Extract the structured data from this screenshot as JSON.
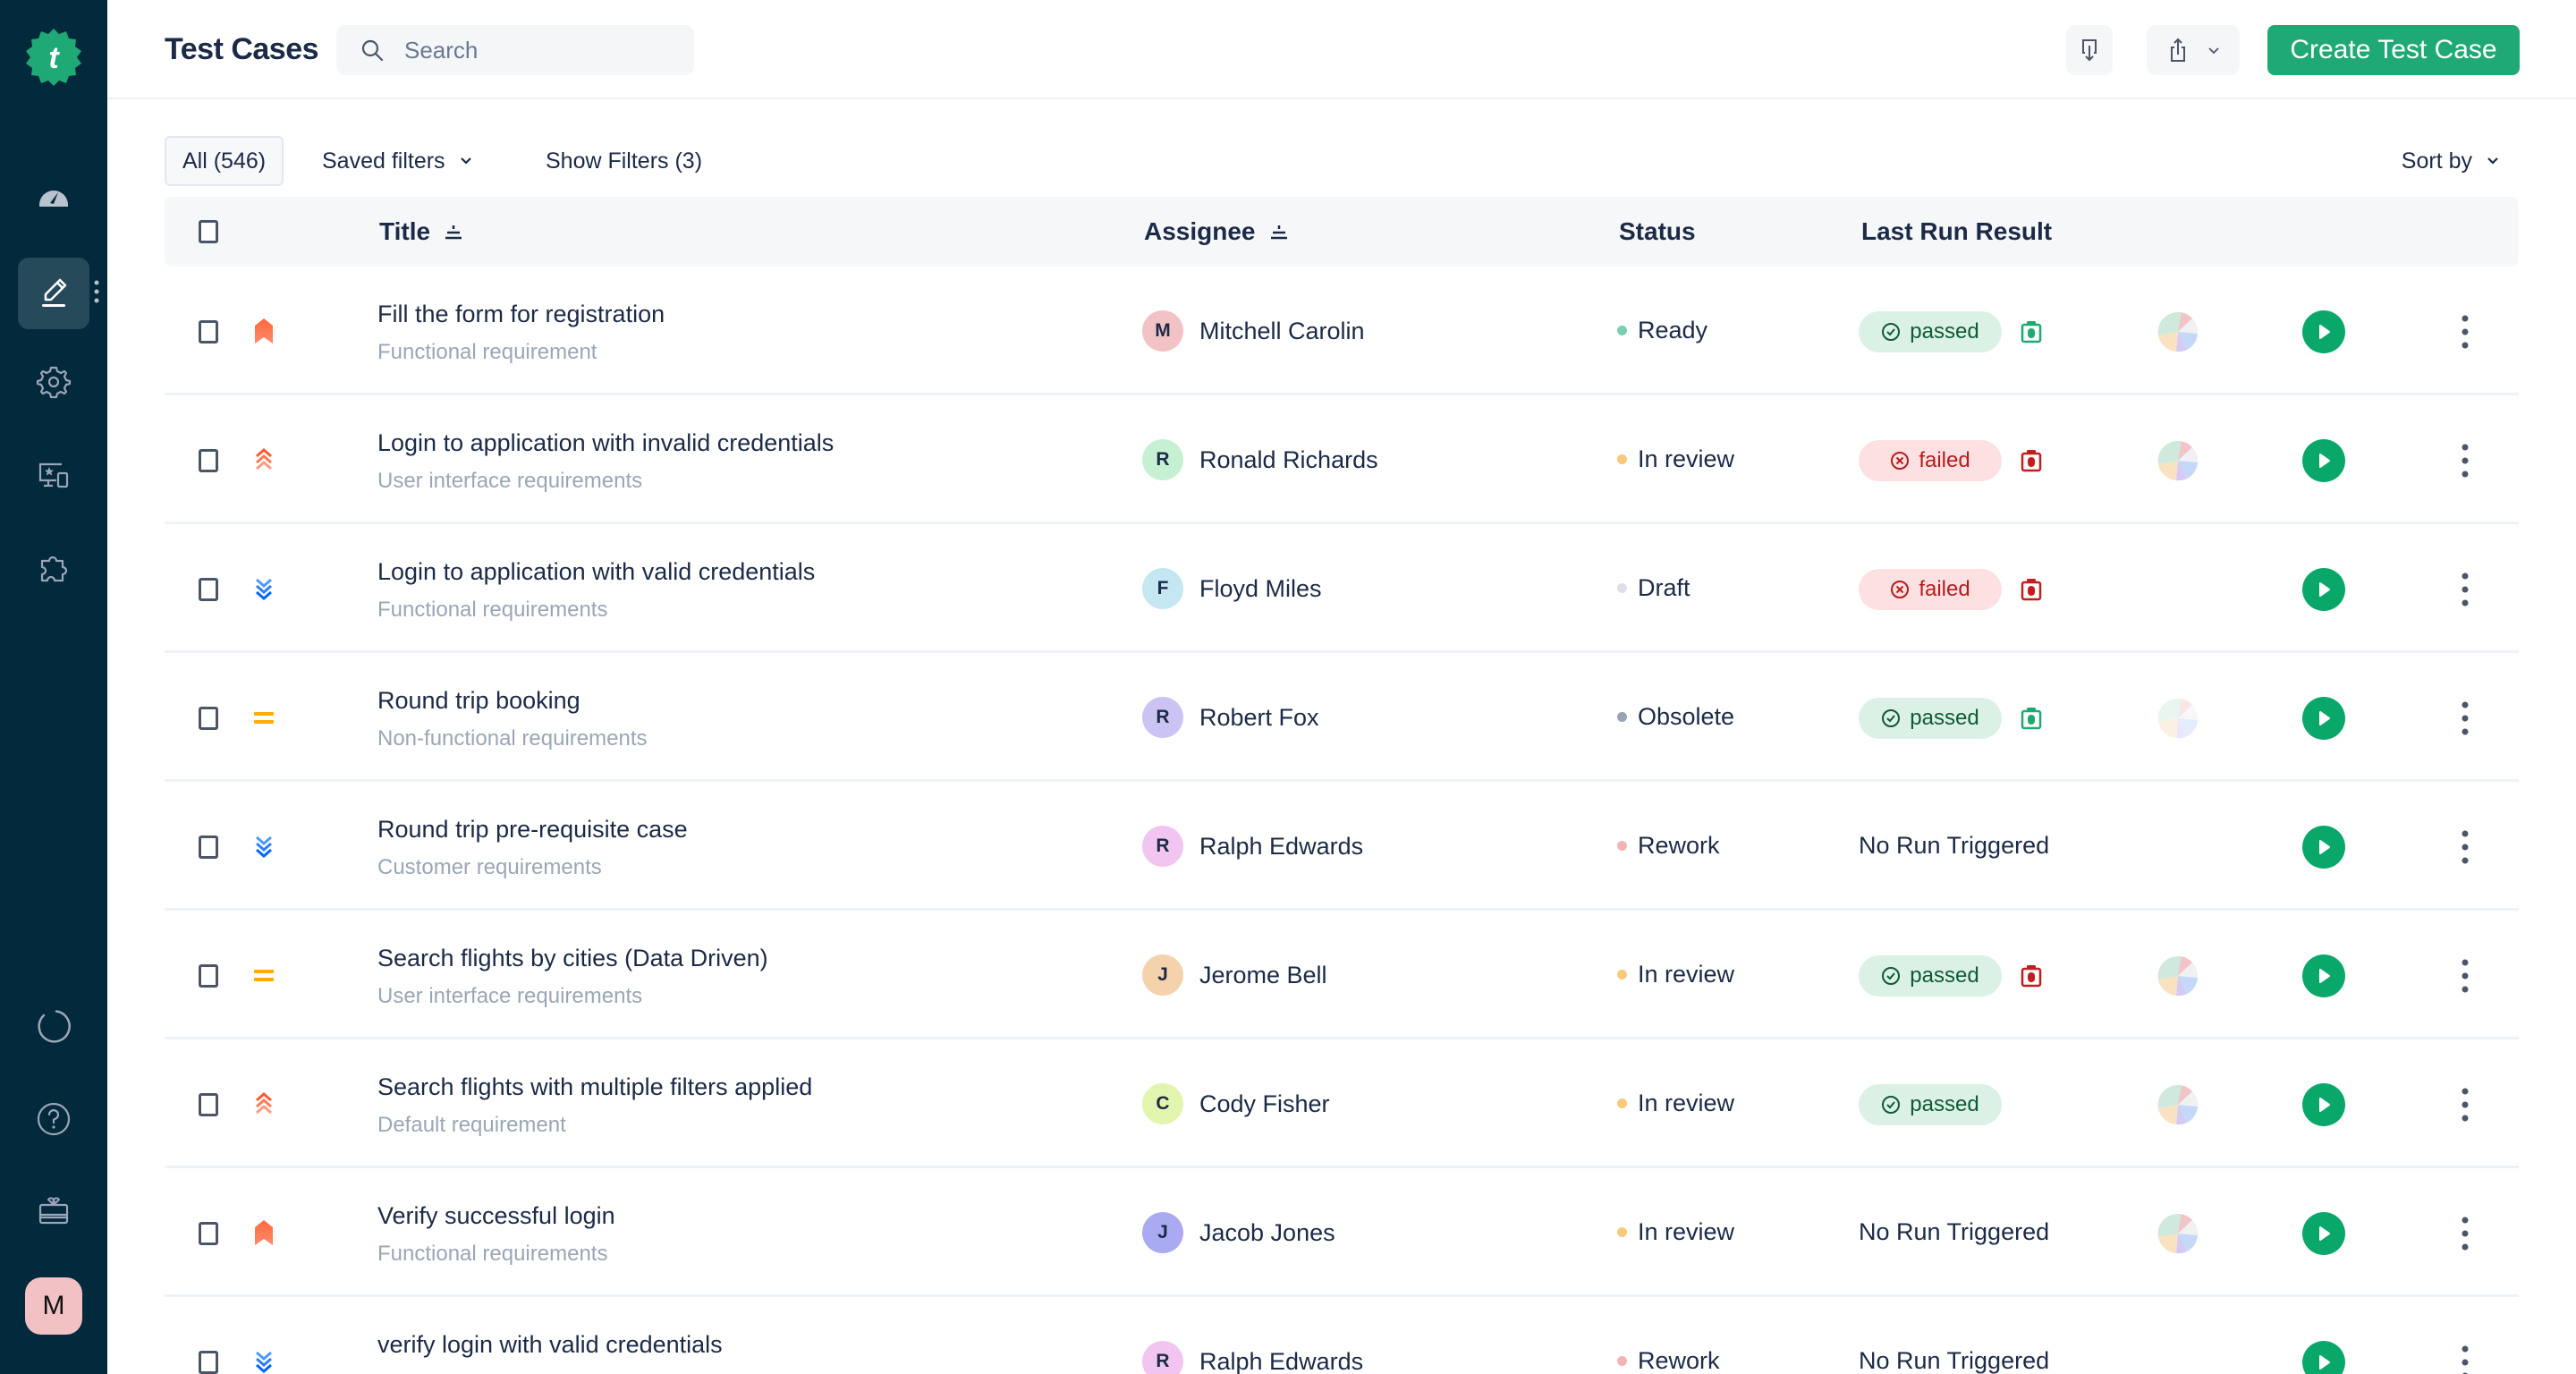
{
  "app": {
    "brand_color": "#0aa76a",
    "sidebar_bg": "#03293c"
  },
  "sidebar": {
    "logo_letter": "t",
    "items": [
      {
        "name": "dashboard",
        "icon": "speedometer-icon",
        "active": false
      },
      {
        "name": "test-cases",
        "icon": "pencil-icon",
        "active": true
      },
      {
        "name": "settings",
        "icon": "gear-icon",
        "active": false
      },
      {
        "name": "devices",
        "icon": "devices-icon",
        "active": false
      },
      {
        "name": "integrations",
        "icon": "puzzle-icon",
        "active": false
      }
    ],
    "bottom_items": [
      {
        "name": "progress",
        "icon": "loading-circle-icon"
      },
      {
        "name": "help",
        "icon": "question-circle-icon"
      },
      {
        "name": "gifts",
        "icon": "gift-icon"
      }
    ],
    "user_avatar": "M"
  },
  "header": {
    "title": "Test Cases",
    "search_placeholder": "Search",
    "create_button": "Create Test Case"
  },
  "filters": {
    "all_label": "All (546)",
    "saved_filters": "Saved filters",
    "show_filters": "Show Filters (3)",
    "sort_by": "Sort by"
  },
  "table": {
    "columns": {
      "title": "Title",
      "assignee": "Assignee",
      "status": "Status",
      "last_run_result": "Last Run Result"
    },
    "rows": [
      {
        "title": "Fill the form for registration",
        "subtitle": "Functional requirement",
        "priority": "critical",
        "assignee": "Mitchell Carolin",
        "initial": "M",
        "avatar_color": "#f2c2c4",
        "status": "Ready",
        "status_color": "#76d0b0",
        "result": "passed",
        "camera": "green",
        "pie": true,
        "pie_faded": false
      },
      {
        "title": "Login to application with invalid credentials",
        "subtitle": "User interface requirements",
        "priority": "high",
        "assignee": "Ronald Richards",
        "initial": "R",
        "avatar_color": "#c6f0d2",
        "status": "In review",
        "status_color": "#f8c97a",
        "result": "failed",
        "camera": "red",
        "pie": true,
        "pie_faded": false
      },
      {
        "title": "Login to application with valid credentials",
        "subtitle": "Functional requirements",
        "priority": "low",
        "assignee": "Floyd Miles",
        "initial": "F",
        "avatar_color": "#c5e7f2",
        "status": "Draft",
        "status_color": "#dde0e6",
        "result": "failed",
        "camera": "red",
        "pie": false,
        "pie_faded": false
      },
      {
        "title": "Round trip booking",
        "subtitle": "Non-functional requirements",
        "priority": "medium",
        "assignee": "Robert Fox",
        "initial": "R",
        "avatar_color": "#cbc4f2",
        "status": "Obsolete",
        "status_color": "#99a3b6",
        "result": "passed",
        "camera": "green",
        "pie": true,
        "pie_faded": true
      },
      {
        "title": "Round trip pre-requisite case",
        "subtitle": "Customer requirements",
        "priority": "low",
        "assignee": "Ralph Edwards",
        "initial": "R",
        "avatar_color": "#f1c5f0",
        "status": "Rework",
        "status_color": "#f5b3b5",
        "result": "No Run Triggered",
        "camera": "",
        "pie": false,
        "pie_faded": false
      },
      {
        "title": "Search flights by cities (Data Driven)",
        "subtitle": "User interface requirements",
        "priority": "medium",
        "assignee": "Jerome Bell",
        "initial": "J",
        "avatar_color": "#f4d2ac",
        "status": "In review",
        "status_color": "#f8c97a",
        "result": "passed",
        "camera": "red",
        "pie": true,
        "pie_faded": false
      },
      {
        "title": "Search flights with multiple filters applied",
        "subtitle": "Default requirement",
        "priority": "high",
        "assignee": "Cody Fisher",
        "initial": "C",
        "avatar_color": "#e2f5ae",
        "status": "In review",
        "status_color": "#f8c97a",
        "result": "passed",
        "camera": "",
        "pie": true,
        "pie_faded": false
      },
      {
        "title": "Verify successful login",
        "subtitle": "Functional requirements",
        "priority": "critical",
        "assignee": "Jacob Jones",
        "initial": "J",
        "avatar_color": "#a9aaf2",
        "status": "In review",
        "status_color": "#f8c97a",
        "result": "No Run Triggered",
        "camera": "",
        "pie": true,
        "pie_faded": false
      },
      {
        "title": "verify login with valid credentials",
        "subtitle": "",
        "priority": "low",
        "assignee": "Ralph Edwards",
        "initial": "R",
        "avatar_color": "#f1c5f0",
        "status": "Rework",
        "status_color": "#f5b3b5",
        "result": "No Run Triggered",
        "camera": "",
        "pie": false,
        "pie_faded": false
      }
    ]
  }
}
